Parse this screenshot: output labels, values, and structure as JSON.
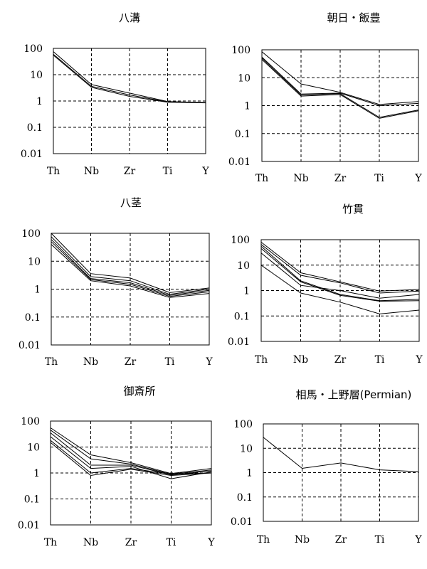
{
  "chart_data": [
    {
      "type": "line",
      "title": "八溝",
      "yscale": "log",
      "ylim": [
        0.01,
        100
      ],
      "categories": [
        "Th",
        "Nb",
        "Zr",
        "Ti",
        "Y"
      ],
      "yticks": [
        "100",
        "10",
        "1",
        "0.1",
        "0.01"
      ],
      "grid": true,
      "series": [
        {
          "values": [
            75,
            4.2,
            2.0,
            0.95,
            0.88
          ]
        },
        {
          "values": [
            60,
            3.6,
            1.7,
            0.92,
            0.86
          ]
        },
        {
          "values": [
            55,
            3.3,
            1.5,
            0.9,
            0.85
          ]
        }
      ]
    },
    {
      "type": "line",
      "title": "朝日・飯豊",
      "yscale": "log",
      "ylim": [
        0.01,
        100
      ],
      "categories": [
        "Th",
        "Nb",
        "Zr",
        "Ti",
        "Y"
      ],
      "yticks": [
        "100",
        "10",
        "1",
        "0.1",
        "0.01"
      ],
      "grid": true,
      "series": [
        {
          "values": [
            85,
            6.0,
            3.0,
            1.1,
            1.4
          ]
        },
        {
          "values": [
            50,
            2.4,
            2.7,
            0.38,
            0.7
          ]
        },
        {
          "values": [
            45,
            2.2,
            2.5,
            0.35,
            0.65
          ]
        },
        {
          "values": [
            55,
            2.6,
            2.8,
            1.0,
            1.2
          ]
        }
      ]
    },
    {
      "type": "line",
      "title": "八茎",
      "yscale": "log",
      "ylim": [
        0.01,
        100
      ],
      "categories": [
        "Th",
        "Nb",
        "Zr",
        "Ti",
        "Y"
      ],
      "yticks": [
        "100",
        "10",
        "1",
        "0.1",
        "0.01"
      ],
      "grid": true,
      "series": [
        {
          "values": [
            100,
            3.6,
            2.5,
            0.75,
            1.1
          ]
        },
        {
          "values": [
            75,
            2.8,
            2.0,
            0.65,
            1.0
          ]
        },
        {
          "values": [
            60,
            2.4,
            1.7,
            0.6,
            0.9
          ]
        },
        {
          "values": [
            50,
            2.2,
            1.5,
            0.55,
            0.8
          ]
        },
        {
          "values": [
            40,
            2.0,
            1.3,
            0.5,
            0.7
          ]
        }
      ]
    },
    {
      "type": "line",
      "title": "竹貫",
      "yscale": "log",
      "ylim": [
        0.01,
        100
      ],
      "categories": [
        "Th",
        "Nb",
        "Zr",
        "Ti",
        "Y"
      ],
      "yticks": [
        "100",
        "10",
        "1",
        "0.1",
        "0.01"
      ],
      "grid": true,
      "series": [
        {
          "values": [
            80,
            5.0,
            2.2,
            0.95,
            1.1
          ]
        },
        {
          "values": [
            65,
            4.0,
            2.0,
            0.8,
            0.95
          ]
        },
        {
          "values": [
            55,
            2.4,
            0.7,
            0.4,
            0.45
          ]
        },
        {
          "values": [
            45,
            2.2,
            0.65,
            0.38,
            0.4
          ]
        },
        {
          "values": [
            30,
            1.6,
            1.0,
            0.5,
            0.7
          ]
        },
        {
          "values": [
            10,
            0.8,
            0.35,
            0.12,
            0.17
          ]
        }
      ]
    },
    {
      "type": "line",
      "title": "御斎所",
      "yscale": "log",
      "ylim": [
        0.01,
        100
      ],
      "categories": [
        "Th",
        "Nb",
        "Zr",
        "Ti",
        "Y"
      ],
      "yticks": [
        "100",
        "10",
        "1",
        "0.1",
        "0.01"
      ],
      "grid": true,
      "series": [
        {
          "values": [
            55,
            5.0,
            2.5,
            0.95,
            1.5
          ]
        },
        {
          "values": [
            45,
            3.5,
            2.2,
            0.9,
            1.3
          ]
        },
        {
          "values": [
            35,
            2.0,
            2.0,
            0.85,
            1.2
          ]
        },
        {
          "values": [
            25,
            1.5,
            1.8,
            0.6,
            1.1
          ]
        },
        {
          "values": [
            18,
            1.0,
            1.5,
            0.9,
            1.0
          ]
        },
        {
          "values": [
            15,
            0.8,
            1.4,
            0.8,
            1.0
          ]
        }
      ]
    },
    {
      "type": "line",
      "title": "相馬・上野層(Permian)",
      "yscale": "log",
      "ylim": [
        0.01,
        100
      ],
      "categories": [
        "Th",
        "Nb",
        "Zr",
        "Ti",
        "Y"
      ],
      "yticks": [
        "100",
        "10",
        "1",
        "0.1",
        "0.01"
      ],
      "grid": true,
      "series": [
        {
          "values": [
            28,
            1.5,
            2.5,
            1.3,
            1.1
          ]
        }
      ]
    }
  ]
}
